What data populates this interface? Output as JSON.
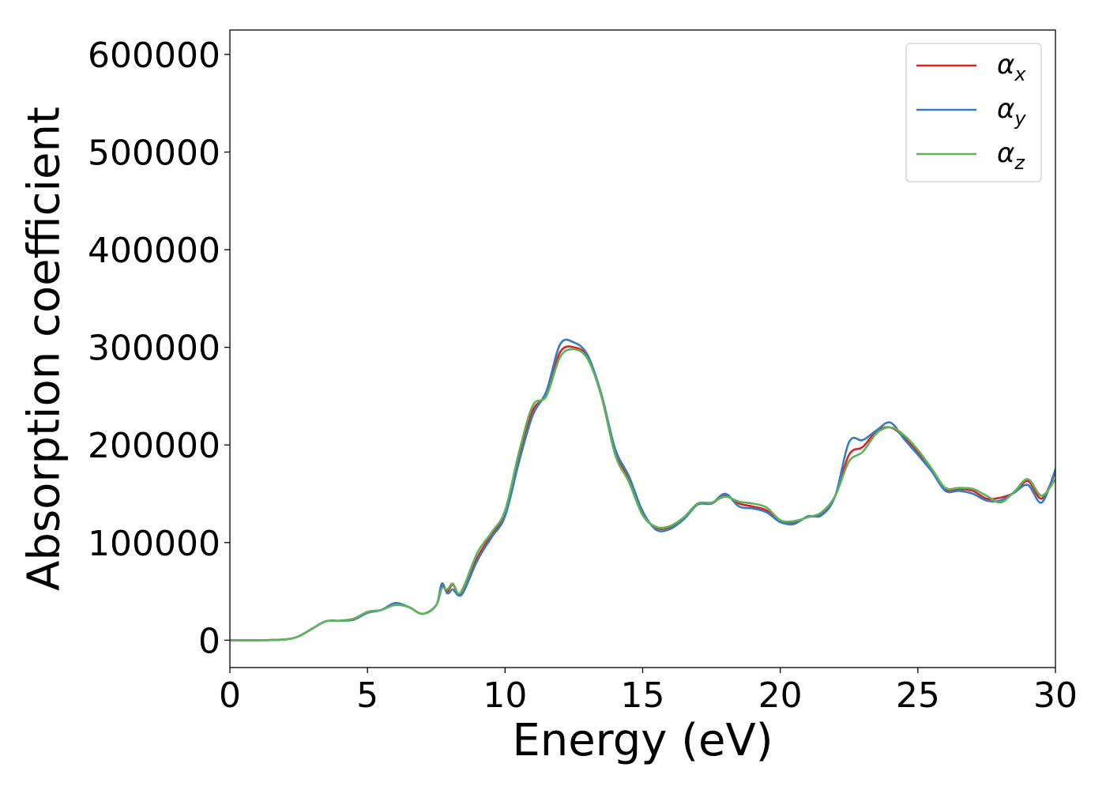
{
  "chart_data": {
    "type": "line",
    "title": "",
    "xlabel": "Energy (eV)",
    "ylabel": "Absorption coefficient",
    "xlim": [
      0,
      30
    ],
    "ylim": [
      -28000,
      625000
    ],
    "xticks": [
      0,
      5,
      10,
      15,
      20,
      25,
      30
    ],
    "xtick_labels": [
      "0",
      "5",
      "10",
      "15",
      "20",
      "25",
      "30"
    ],
    "yticks": [
      0,
      100000,
      200000,
      300000,
      400000,
      500000,
      600000
    ],
    "ytick_labels": [
      "0",
      "100000",
      "200000",
      "300000",
      "400000",
      "500000",
      "600000"
    ],
    "grid": false,
    "legend_position": "top-right",
    "x": [
      0,
      1,
      2,
      2.5,
      3,
      3.5,
      4,
      4.5,
      5,
      5.5,
      6,
      6.5,
      7,
      7.5,
      7.7,
      7.9,
      8.1,
      8.3,
      8.5,
      9,
      9.5,
      10,
      10.5,
      11,
      11.5,
      12,
      12.5,
      13,
      13.5,
      14,
      14.5,
      15,
      15.5,
      16,
      16.5,
      17,
      17.5,
      18,
      18.5,
      19,
      19.5,
      20,
      20.5,
      21,
      21.5,
      22,
      22.5,
      23,
      23.5,
      24,
      24.5,
      25,
      25.5,
      26,
      26.5,
      27,
      27.5,
      28,
      28.5,
      29,
      29.5,
      30
    ],
    "series": [
      {
        "name": "α_x",
        "legend_main": "α",
        "legend_sub": "x",
        "color": "#d62728",
        "values": [
          0,
          0,
          800,
          4000,
          12000,
          19500,
          20000,
          22000,
          29000,
          31000,
          37000,
          34000,
          27000,
          36000,
          55000,
          50000,
          57000,
          47000,
          53000,
          85000,
          108000,
          130000,
          188000,
          235000,
          252000,
          295000,
          300000,
          290000,
          250000,
          192000,
          165000,
          130000,
          115000,
          116000,
          125000,
          140000,
          140000,
          148000,
          140000,
          137000,
          133000,
          121000,
          121000,
          126000,
          130000,
          148000,
          190000,
          198000,
          214000,
          218000,
          208000,
          193000,
          175000,
          155000,
          155000,
          153000,
          145000,
          146000,
          151000,
          163000,
          145000,
          172000
        ]
      },
      {
        "name": "α_y",
        "legend_main": "α",
        "legend_sub": "y",
        "color": "#3a7bbf",
        "values": [
          0,
          0,
          800,
          4000,
          12000,
          19500,
          20000,
          21000,
          28000,
          31000,
          38000,
          34000,
          27000,
          36000,
          58000,
          48000,
          52000,
          46000,
          50000,
          82000,
          105000,
          127000,
          182000,
          230000,
          255000,
          303000,
          305000,
          292000,
          252000,
          196000,
          168000,
          132000,
          113000,
          114000,
          124000,
          139000,
          140000,
          150000,
          137000,
          135000,
          131000,
          121000,
          119000,
          127000,
          128000,
          148000,
          203000,
          205000,
          215000,
          223000,
          206000,
          190000,
          173000,
          153000,
          153000,
          150000,
          143000,
          143000,
          151000,
          159000,
          141000,
          175000
        ]
      },
      {
        "name": "α_z",
        "legend_main": "α",
        "legend_sub": "z",
        "color": "#5fb35a",
        "values": [
          0,
          0,
          800,
          4000,
          12000,
          19500,
          20000,
          22000,
          29000,
          31000,
          36000,
          34000,
          27000,
          36000,
          53000,
          52000,
          58000,
          48000,
          55000,
          90000,
          110000,
          133000,
          192000,
          240000,
          250000,
          290000,
          298000,
          288000,
          250000,
          190000,
          162000,
          128000,
          116000,
          117000,
          126000,
          140000,
          141000,
          147000,
          142000,
          140000,
          136000,
          123000,
          122000,
          126000,
          131000,
          148000,
          183000,
          193000,
          212000,
          218000,
          210000,
          195000,
          176000,
          156000,
          156000,
          155000,
          148000,
          141000,
          152000,
          165000,
          148000,
          165000
        ]
      }
    ]
  }
}
